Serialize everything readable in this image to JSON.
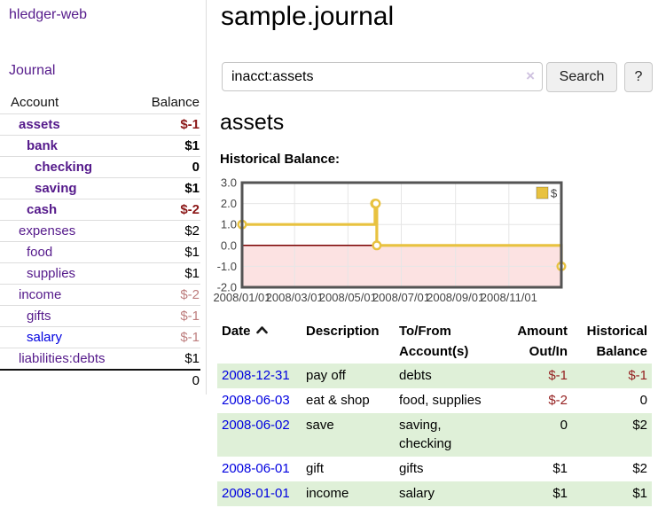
{
  "app": {
    "brand": "hledger-web"
  },
  "sidebar": {
    "nav_journal": "Journal",
    "accounts_table": {
      "header_account": "Account",
      "header_balance": "Balance",
      "rows": [
        {
          "name": "assets",
          "depth": 0,
          "bold": true,
          "balance": "$-1",
          "balance_style": "neg-strong",
          "link_style": "purple"
        },
        {
          "name": "bank",
          "depth": 1,
          "bold": true,
          "balance": "$1",
          "balance_style": "plain",
          "link_style": "purple"
        },
        {
          "name": "checking",
          "depth": 2,
          "bold": true,
          "balance": "0",
          "balance_style": "plain",
          "link_style": "purple"
        },
        {
          "name": "saving",
          "depth": 2,
          "bold": true,
          "balance": "$1",
          "balance_style": "plain",
          "link_style": "purple"
        },
        {
          "name": "cash",
          "depth": 1,
          "bold": true,
          "balance": "$-2",
          "balance_style": "neg-strong",
          "link_style": "purple"
        },
        {
          "name": "expenses",
          "depth": 0,
          "bold": false,
          "balance": "$2",
          "balance_style": "plain",
          "link_style": "purple"
        },
        {
          "name": "food",
          "depth": 1,
          "bold": false,
          "balance": "$1",
          "balance_style": "plain",
          "link_style": "purple"
        },
        {
          "name": "supplies",
          "depth": 1,
          "bold": false,
          "balance": "$1",
          "balance_style": "plain",
          "link_style": "purple"
        },
        {
          "name": "income",
          "depth": 0,
          "bold": false,
          "balance": "$-2",
          "balance_style": "neg-soft",
          "link_style": "purple"
        },
        {
          "name": "gifts",
          "depth": 1,
          "bold": false,
          "balance": "$-1",
          "balance_style": "neg-soft",
          "link_style": "purple"
        },
        {
          "name": "salary",
          "depth": 1,
          "bold": false,
          "balance": "$-1",
          "balance_style": "neg-soft",
          "link_style": "blue"
        },
        {
          "name": "liabilities:debts",
          "depth": 0,
          "bold": false,
          "balance": "$1",
          "balance_style": "plain",
          "link_style": "purple"
        }
      ],
      "total": "0"
    }
  },
  "header": {
    "title": "sample.journal"
  },
  "search": {
    "value": "inacct:assets",
    "clear_icon": "×",
    "button_label": "Search",
    "help_label": "?"
  },
  "account_page": {
    "heading": "assets",
    "chart_label": "Historical Balance:"
  },
  "chart_data": {
    "type": "line",
    "title": "Historical Balance",
    "step": "after",
    "series": [
      {
        "name": "$",
        "color": "#e8c240",
        "points": [
          [
            "2008-01-01",
            1.0
          ],
          [
            "2008-06-01",
            2.0
          ],
          [
            "2008-06-02",
            2.0
          ],
          [
            "2008-06-03",
            0.0
          ],
          [
            "2008-12-31",
            -1.0
          ]
        ]
      }
    ],
    "x_range": [
      "2008-01-01",
      "2008-12-31"
    ],
    "x_tick_labels": [
      "2008/01/01",
      "2008/03/01",
      "2008/05/01",
      "2008/07/01",
      "2008/09/01",
      "2008/11/01"
    ],
    "y_tick_labels": [
      "3.0",
      "2.0",
      "1.0",
      "0.0",
      "-1.0",
      "-2.0"
    ],
    "ylim": [
      -2,
      3
    ],
    "grid": true,
    "legend": {
      "label": "$",
      "position": "top-right"
    },
    "colors": {
      "line": "#e8c240",
      "marker_fill": "#ffffff",
      "negative_region": "#fce2e2",
      "zero_line": "#7a0000",
      "grid": "#e6e6e6",
      "border": "#545454",
      "axis_text": "#444444"
    }
  },
  "register_table": {
    "headers": {
      "date": "Date",
      "description": "Description",
      "accounts": "To/From Account(s)",
      "amount": "Amount Out/In",
      "balance": "Historical Balance"
    },
    "rows": [
      {
        "date": "2008-12-31",
        "description": "pay off",
        "accounts": "debts",
        "amount": "$-1",
        "amount_neg": true,
        "balance": "$-1",
        "balance_neg": true
      },
      {
        "date": "2008-06-03",
        "description": "eat & shop",
        "accounts": "food, supplies",
        "amount": "$-2",
        "amount_neg": true,
        "balance": "0",
        "balance_neg": false
      },
      {
        "date": "2008-06-02",
        "description": "save",
        "accounts": "saving, checking",
        "amount": "0",
        "amount_neg": false,
        "balance": "$2",
        "balance_neg": false
      },
      {
        "date": "2008-06-01",
        "description": "gift",
        "accounts": "gifts",
        "amount": "$1",
        "amount_neg": false,
        "balance": "$2",
        "balance_neg": false
      },
      {
        "date": "2008-01-01",
        "description": "income",
        "accounts": "salary",
        "amount": "$1",
        "amount_neg": false,
        "balance": "$1",
        "balance_neg": false
      }
    ]
  }
}
